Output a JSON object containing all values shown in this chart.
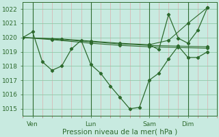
{
  "background_color": "#c8eae0",
  "grid_color": "#90c8a8",
  "line_color": "#2d6a2d",
  "marker_color": "#2d6a2d",
  "xlabel": "Pression niveau de la mer( hPa )",
  "xlabel_fontsize": 7.5,
  "tick_fontsize": 6.5,
  "ylim": [
    1014.5,
    1022.5
  ],
  "yticks": [
    1015,
    1016,
    1017,
    1018,
    1019,
    1020,
    1021,
    1022
  ],
  "xtick_labels": [
    "Ven",
    "Lun",
    "Sam",
    "Dim"
  ],
  "xtick_positions": [
    2,
    14,
    26,
    34
  ],
  "vline_positions": [
    2,
    14,
    26,
    34
  ],
  "xlim": [
    0,
    40
  ],
  "series0": {
    "x": [
      0,
      2,
      4,
      6,
      8,
      10,
      12,
      14,
      16,
      18,
      20,
      22,
      24,
      26,
      28,
      30,
      32,
      34,
      36,
      38
    ],
    "y": [
      1020.0,
      1020.4,
      1018.3,
      1017.7,
      1018.0,
      1019.2,
      1019.8,
      1018.1,
      1017.5,
      1016.6,
      1015.8,
      1015.0,
      1015.1,
      1017.0,
      1017.5,
      1018.5,
      1019.4,
      1018.6,
      1018.6,
      1019.0
    ]
  },
  "series1": {
    "x": [
      0,
      6,
      14,
      20,
      26,
      32,
      38
    ],
    "y": [
      1020.0,
      1019.9,
      1019.7,
      1019.55,
      1019.45,
      1019.4,
      1019.35
    ]
  },
  "series2": {
    "x": [
      0,
      6,
      14,
      20,
      26,
      32,
      38
    ],
    "y": [
      1020.0,
      1019.85,
      1019.6,
      1019.45,
      1019.35,
      1019.3,
      1019.25
    ]
  },
  "series3": {
    "x": [
      0,
      8,
      14,
      20,
      26,
      30,
      34,
      38
    ],
    "y": [
      1020.0,
      1019.9,
      1019.75,
      1019.6,
      1019.5,
      1019.8,
      1021.0,
      1022.1
    ]
  },
  "series4": {
    "x": [
      26,
      28,
      30,
      32,
      34,
      36,
      38
    ],
    "y": [
      1019.5,
      1019.15,
      1021.6,
      1019.95,
      1019.6,
      1020.5,
      1022.1
    ]
  }
}
